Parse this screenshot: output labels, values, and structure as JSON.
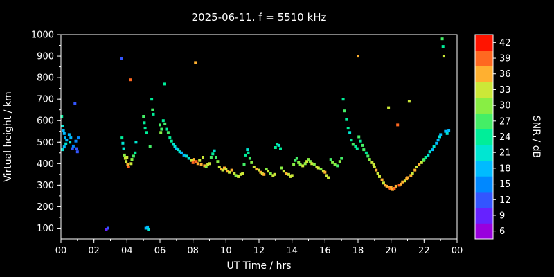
{
  "title": "2025-06-11. f = 5510 kHz",
  "chart_data": {
    "type": "scatter",
    "title": "2025-06-11. f = 5510 kHz",
    "xlabel": "UT Time / hrs",
    "ylabel": "Virtual height / km",
    "xlim": [
      0,
      24
    ],
    "ylim": [
      50,
      1000
    ],
    "xticks": [
      {
        "v": 0,
        "label": "00"
      },
      {
        "v": 2,
        "label": "02"
      },
      {
        "v": 4,
        "label": "04"
      },
      {
        "v": 6,
        "label": "06"
      },
      {
        "v": 8,
        "label": "08"
      },
      {
        "v": 10,
        "label": "10"
      },
      {
        "v": 12,
        "label": "12"
      },
      {
        "v": 14,
        "label": "14"
      },
      {
        "v": 16,
        "label": "16"
      },
      {
        "v": 18,
        "label": "18"
      },
      {
        "v": 20,
        "label": "20"
      },
      {
        "v": 22,
        "label": "22"
      },
      {
        "v": 24,
        "label": "00"
      }
    ],
    "yticks": [
      100,
      200,
      300,
      400,
      500,
      600,
      700,
      800,
      900,
      1000
    ],
    "grid": false,
    "background": "#000000",
    "axis_color": "#ffffff",
    "marker": {
      "shape": "square",
      "size": 4
    },
    "colorbar": {
      "label": "SNR / dB",
      "range": [
        4.5,
        43.5
      ],
      "ticks": [
        6,
        9,
        12,
        15,
        18,
        21,
        24,
        27,
        30,
        33,
        36,
        39,
        42
      ],
      "band_colors": [
        "#9900dd",
        "#6622ff",
        "#3355ff",
        "#0088ff",
        "#00bbff",
        "#00e6d2",
        "#00ee99",
        "#44ee66",
        "#88ee44",
        "#cce838",
        "#ffb030",
        "#ff6820",
        "#ff1400"
      ]
    },
    "points_format": [
      "t_hours",
      "height_km",
      "snr_db"
    ],
    "points": [
      [
        0.05,
        620,
        24
      ],
      [
        0.1,
        575,
        21
      ],
      [
        0.15,
        555,
        19
      ],
      [
        0.2,
        540,
        18
      ],
      [
        0.25,
        520,
        19
      ],
      [
        0.1,
        465,
        21
      ],
      [
        0.2,
        478,
        18
      ],
      [
        0.3,
        492,
        20
      ],
      [
        0.35,
        510,
        17
      ],
      [
        0.5,
        535,
        19
      ],
      [
        0.55,
        500,
        22
      ],
      [
        0.6,
        520,
        18
      ],
      [
        0.7,
        470,
        13
      ],
      [
        0.75,
        482,
        16
      ],
      [
        0.85,
        680,
        11
      ],
      [
        0.9,
        505,
        14
      ],
      [
        0.95,
        470,
        12
      ],
      [
        1.0,
        455,
        13
      ],
      [
        1.05,
        520,
        15
      ],
      [
        2.75,
        95,
        8
      ],
      [
        2.85,
        100,
        11
      ],
      [
        3.65,
        890,
        12
      ],
      [
        3.7,
        520,
        24
      ],
      [
        3.75,
        495,
        22
      ],
      [
        3.8,
        470,
        21
      ],
      [
        3.85,
        440,
        30
      ],
      [
        3.9,
        425,
        33
      ],
      [
        3.95,
        410,
        34
      ],
      [
        4.0,
        430,
        32
      ],
      [
        4.05,
        395,
        36
      ],
      [
        4.1,
        385,
        38
      ],
      [
        4.2,
        790,
        39
      ],
      [
        4.25,
        400,
        33
      ],
      [
        4.3,
        420,
        30
      ],
      [
        4.4,
        435,
        28
      ],
      [
        4.5,
        450,
        25
      ],
      [
        4.55,
        500,
        22
      ],
      [
        5.0,
        620,
        26
      ],
      [
        5.05,
        590,
        24
      ],
      [
        5.1,
        565,
        25
      ],
      [
        5.2,
        545,
        23
      ],
      [
        5.15,
        100,
        18
      ],
      [
        5.25,
        105,
        19
      ],
      [
        5.3,
        95,
        20
      ],
      [
        5.4,
        480,
        26
      ],
      [
        5.5,
        700,
        25
      ],
      [
        5.55,
        650,
        27
      ],
      [
        5.6,
        630,
        24
      ],
      [
        6.0,
        580,
        27
      ],
      [
        6.05,
        545,
        30
      ],
      [
        6.1,
        560,
        28
      ],
      [
        6.2,
        600,
        25
      ],
      [
        6.25,
        770,
        24
      ],
      [
        6.3,
        585,
        26
      ],
      [
        6.4,
        560,
        24
      ],
      [
        6.5,
        545,
        27
      ],
      [
        6.6,
        520,
        25
      ],
      [
        6.7,
        505,
        23
      ],
      [
        6.8,
        490,
        21
      ],
      [
        6.9,
        480,
        20
      ],
      [
        7.0,
        470,
        19
      ],
      [
        7.1,
        465,
        21
      ],
      [
        7.2,
        455,
        20
      ],
      [
        7.3,
        450,
        18
      ],
      [
        7.45,
        440,
        19
      ],
      [
        7.6,
        435,
        21
      ],
      [
        7.75,
        425,
        20
      ],
      [
        7.9,
        415,
        33
      ],
      [
        8.0,
        405,
        38
      ],
      [
        8.05,
        420,
        36
      ],
      [
        8.15,
        870,
        35
      ],
      [
        8.2,
        410,
        39
      ],
      [
        8.3,
        400,
        37
      ],
      [
        8.4,
        415,
        34
      ],
      [
        8.5,
        395,
        36
      ],
      [
        8.6,
        430,
        33
      ],
      [
        8.7,
        390,
        35
      ],
      [
        8.8,
        385,
        30
      ],
      [
        8.9,
        395,
        32
      ],
      [
        9.0,
        400,
        34
      ],
      [
        9.1,
        430,
        28
      ],
      [
        9.2,
        445,
        24
      ],
      [
        9.3,
        460,
        21
      ],
      [
        9.4,
        430,
        26
      ],
      [
        9.5,
        410,
        31
      ],
      [
        9.6,
        385,
        34
      ],
      [
        9.7,
        375,
        35
      ],
      [
        9.8,
        370,
        33
      ],
      [
        9.9,
        380,
        36
      ],
      [
        10.0,
        375,
        34
      ],
      [
        10.1,
        365,
        36
      ],
      [
        10.2,
        360,
        33
      ],
      [
        10.35,
        370,
        35
      ],
      [
        10.5,
        355,
        32
      ],
      [
        10.6,
        345,
        30
      ],
      [
        10.75,
        340,
        33
      ],
      [
        10.9,
        350,
        34
      ],
      [
        11.0,
        355,
        32
      ],
      [
        11.1,
        395,
        28
      ],
      [
        11.2,
        440,
        24
      ],
      [
        11.3,
        465,
        22
      ],
      [
        11.35,
        450,
        25
      ],
      [
        11.45,
        425,
        27
      ],
      [
        11.55,
        405,
        30
      ],
      [
        11.7,
        385,
        33
      ],
      [
        11.85,
        375,
        35
      ],
      [
        12.0,
        370,
        34
      ],
      [
        12.1,
        360,
        36
      ],
      [
        12.2,
        355,
        33
      ],
      [
        12.3,
        350,
        35
      ],
      [
        12.45,
        375,
        31
      ],
      [
        12.55,
        365,
        33
      ],
      [
        12.7,
        355,
        30
      ],
      [
        12.85,
        345,
        34
      ],
      [
        12.95,
        350,
        32
      ],
      [
        13.0,
        475,
        23
      ],
      [
        13.1,
        490,
        25
      ],
      [
        13.2,
        485,
        22
      ],
      [
        13.3,
        470,
        24
      ],
      [
        13.35,
        380,
        31
      ],
      [
        13.5,
        365,
        33
      ],
      [
        13.65,
        355,
        35
      ],
      [
        13.8,
        350,
        32
      ],
      [
        13.9,
        340,
        34
      ],
      [
        14.0,
        345,
        33
      ],
      [
        14.1,
        395,
        30
      ],
      [
        14.2,
        415,
        28
      ],
      [
        14.3,
        425,
        26
      ],
      [
        14.4,
        405,
        29
      ],
      [
        14.5,
        395,
        31
      ],
      [
        14.65,
        390,
        33
      ],
      [
        14.8,
        400,
        30
      ],
      [
        14.9,
        410,
        32
      ],
      [
        15.0,
        420,
        29
      ],
      [
        15.1,
        410,
        31
      ],
      [
        15.2,
        400,
        33
      ],
      [
        15.35,
        395,
        30
      ],
      [
        15.5,
        385,
        32
      ],
      [
        15.6,
        380,
        34
      ],
      [
        15.75,
        375,
        31
      ],
      [
        15.9,
        365,
        33
      ],
      [
        16.0,
        360,
        35
      ],
      [
        16.1,
        345,
        32
      ],
      [
        16.2,
        335,
        34
      ],
      [
        16.35,
        420,
        27
      ],
      [
        16.45,
        405,
        29
      ],
      [
        16.6,
        395,
        31
      ],
      [
        16.75,
        390,
        28
      ],
      [
        16.9,
        410,
        30
      ],
      [
        17.0,
        425,
        27
      ],
      [
        17.1,
        700,
        24
      ],
      [
        17.2,
        645,
        26
      ],
      [
        17.3,
        605,
        23
      ],
      [
        17.4,
        565,
        25
      ],
      [
        17.5,
        545,
        22
      ],
      [
        17.6,
        510,
        24
      ],
      [
        17.7,
        490,
        26
      ],
      [
        17.85,
        480,
        23
      ],
      [
        17.95,
        470,
        25
      ],
      [
        18.0,
        900,
        35
      ],
      [
        18.05,
        525,
        27
      ],
      [
        18.15,
        505,
        24
      ],
      [
        18.25,
        485,
        26
      ],
      [
        18.35,
        465,
        28
      ],
      [
        18.5,
        450,
        25
      ],
      [
        18.6,
        435,
        27
      ],
      [
        18.7,
        420,
        30
      ],
      [
        18.85,
        405,
        32
      ],
      [
        18.95,
        395,
        34
      ],
      [
        19.0,
        385,
        33
      ],
      [
        19.1,
        370,
        35
      ],
      [
        19.2,
        355,
        32
      ],
      [
        19.3,
        340,
        34
      ],
      [
        19.45,
        325,
        36
      ],
      [
        19.55,
        310,
        33
      ],
      [
        19.65,
        300,
        35
      ],
      [
        19.75,
        295,
        37
      ],
      [
        19.85,
        660,
        34
      ],
      [
        19.9,
        290,
        36
      ],
      [
        19.95,
        285,
        38
      ],
      [
        20.0,
        290,
        35
      ],
      [
        20.1,
        280,
        37
      ],
      [
        20.2,
        285,
        39
      ],
      [
        20.3,
        295,
        36
      ],
      [
        20.4,
        580,
        40
      ],
      [
        20.5,
        300,
        38
      ],
      [
        20.6,
        305,
        35
      ],
      [
        20.7,
        315,
        37
      ],
      [
        20.85,
        320,
        34
      ],
      [
        20.95,
        330,
        36
      ],
      [
        21.0,
        335,
        35
      ],
      [
        21.1,
        690,
        34
      ],
      [
        21.2,
        345,
        37
      ],
      [
        21.3,
        355,
        34
      ],
      [
        21.45,
        370,
        36
      ],
      [
        21.55,
        385,
        33
      ],
      [
        21.7,
        395,
        35
      ],
      [
        21.85,
        405,
        32
      ],
      [
        21.95,
        415,
        30
      ],
      [
        22.0,
        420,
        28
      ],
      [
        22.1,
        430,
        25
      ],
      [
        22.25,
        440,
        22
      ],
      [
        22.35,
        455,
        20
      ],
      [
        22.5,
        465,
        18
      ],
      [
        22.6,
        480,
        21
      ],
      [
        22.75,
        495,
        19
      ],
      [
        22.85,
        510,
        17
      ],
      [
        22.95,
        525,
        20
      ],
      [
        23.0,
        535,
        18
      ],
      [
        23.1,
        980,
        26
      ],
      [
        23.15,
        945,
        24
      ],
      [
        23.2,
        900,
        33
      ],
      [
        23.3,
        550,
        19
      ],
      [
        23.4,
        540,
        21
      ],
      [
        23.5,
        555,
        18
      ]
    ]
  }
}
